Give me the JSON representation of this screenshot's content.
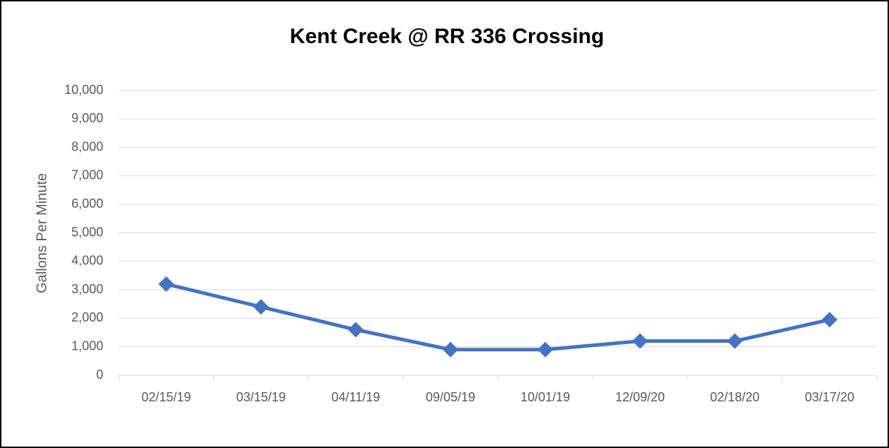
{
  "chart_data": {
    "type": "line",
    "title": "Kent Creek @ RR 336 Crossing",
    "y_label": "Gallons Per Minute",
    "categories": [
      "02/15/19",
      "03/15/19",
      "04/11/19",
      "09/05/19",
      "10/01/19",
      "12/09/20",
      "02/18/20",
      "03/17/20"
    ],
    "series": [
      {
        "name": "Gallons Per Minute",
        "color": "#4472c4",
        "values": [
          3200,
          2400,
          1600,
          900,
          900,
          1200,
          1200,
          1950
        ]
      }
    ],
    "ylim": [
      0,
      10000
    ],
    "yticks": [
      0,
      {
        "value": 1000,
        "label": "1,000"
      },
      {
        "value": 2000,
        "label": "2,000"
      },
      {
        "value": 3000,
        "label": "3,000"
      },
      {
        "value": 4000,
        "label": "4,000"
      },
      {
        "value": 5000,
        "label": "5,000"
      },
      {
        "value": 6000,
        "label": "6,000"
      },
      {
        "value": 7000,
        "label": "7,000"
      },
      {
        "value": 8000,
        "label": "8,000"
      },
      {
        "value": 9000,
        "label": "9,000"
      },
      {
        "value": 10000,
        "label": "10,000"
      }
    ],
    "grid": true
  }
}
